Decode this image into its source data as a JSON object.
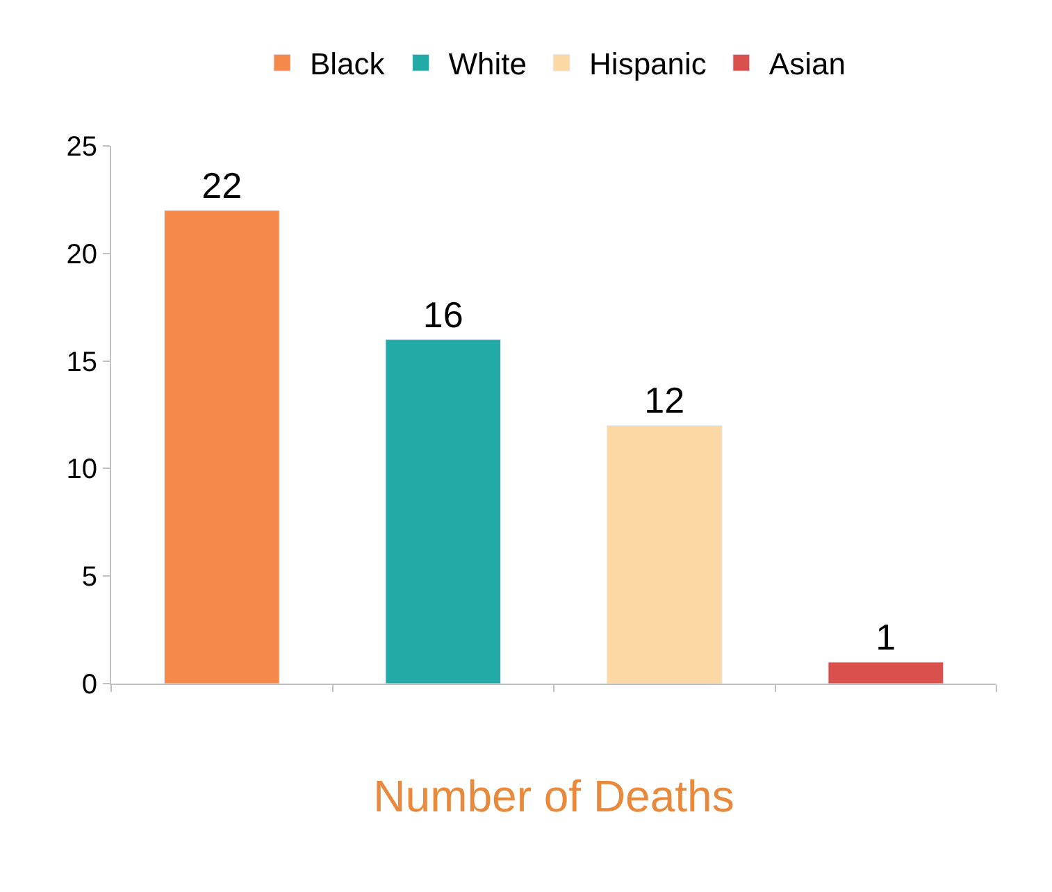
{
  "chart_data": {
    "type": "bar",
    "xlabel": "Number of Deaths",
    "categories": [
      null,
      null,
      null,
      null
    ],
    "series": [
      {
        "name": "Black",
        "color": "#f5894a",
        "values": [
          22,
          null,
          null,
          null
        ]
      },
      {
        "name": "White",
        "color": "#22aaa6",
        "values": [
          null,
          16,
          null,
          null
        ]
      },
      {
        "name": "Hispanic",
        "color": "#fcd9a4",
        "values": [
          null,
          null,
          12,
          null
        ]
      },
      {
        "name": "Asian",
        "color": "#d9504c",
        "values": [
          null,
          null,
          null,
          1
        ]
      }
    ],
    "ylim": [
      0,
      25
    ],
    "yticks": [
      0,
      5,
      10,
      15,
      20,
      25
    ],
    "data_labels": true,
    "legend": "top"
  }
}
